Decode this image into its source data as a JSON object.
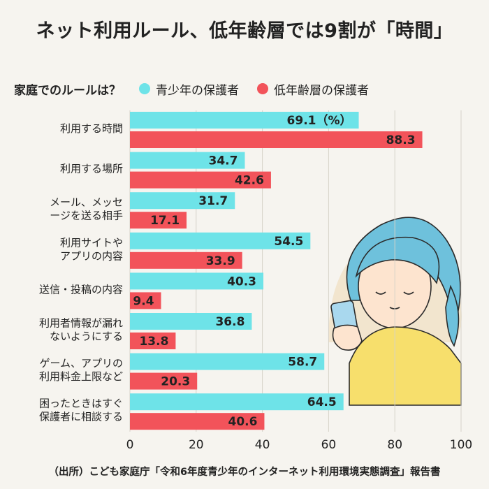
{
  "title": "ネット利用ルール、低年齢層では9割が「時間」",
  "source": "（出所）こども家庭庁「令和6年度青少年のインターネット利用環境実態調査」報告書",
  "colors": {
    "series_1": "#6ee3e8",
    "series_2": "#f2535a",
    "background": "#f6f4ef",
    "grid": "#d6d2c8"
  },
  "chart_data": {
    "type": "bar",
    "orientation": "horizontal",
    "question": "家庭でのルールは？",
    "unit_label": "（%）",
    "categories": [
      [
        "利用する時間"
      ],
      [
        "利用する場所"
      ],
      [
        "メール、メッセ",
        "ージを送る相手"
      ],
      [
        "利用サイトや",
        "アプリの内容"
      ],
      [
        "送信・投稿の内容"
      ],
      [
        "利用者情報が漏れ",
        "ないようにする"
      ],
      [
        "ゲーム、アプリの",
        "利用料金上限など"
      ],
      [
        "困ったときはすぐ",
        "保護者に相談する"
      ]
    ],
    "series": [
      {
        "name": "青少年の保護者",
        "values": [
          69.1,
          34.7,
          31.7,
          54.5,
          40.3,
          36.8,
          58.7,
          64.5
        ]
      },
      {
        "name": "低年齢層の保護者",
        "values": [
          88.3,
          42.6,
          17.1,
          33.9,
          9.4,
          13.8,
          20.3,
          40.6
        ]
      }
    ],
    "xlim": [
      0,
      100
    ],
    "xticks": [
      0,
      20,
      40,
      60,
      80,
      100
    ],
    "legend_position": "top",
    "grid": true
  }
}
